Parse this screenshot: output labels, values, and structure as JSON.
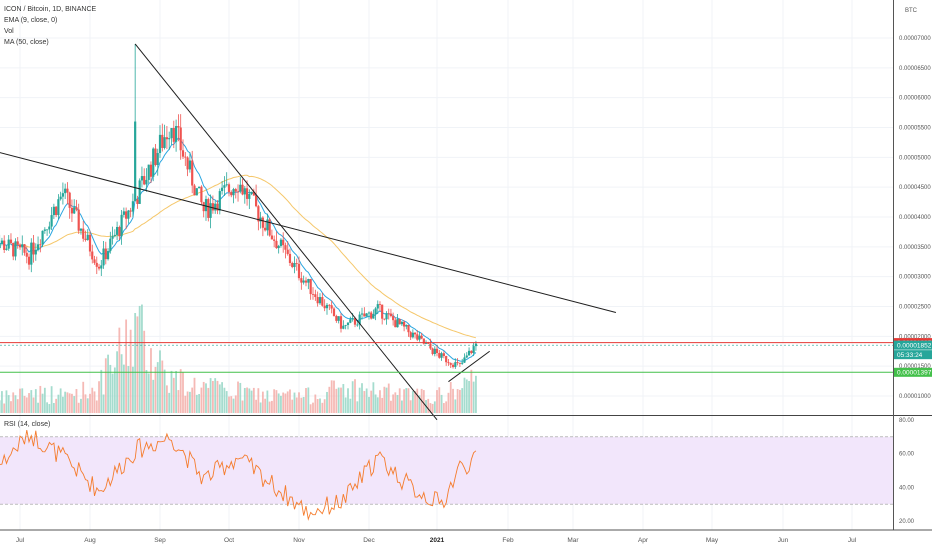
{
  "chart_data": {
    "type": "candlestick",
    "title": "ICON / Bitcoin, 1D, BINANCE",
    "currency": "BTC",
    "indicators": [
      "EMA (9, close, 0)",
      "Vol",
      "MA (50, close)"
    ],
    "rsi_label": "RSI (14, close)",
    "x_tick_labels": [
      "Jul",
      "Aug",
      "Sep",
      "Oct",
      "Nov",
      "Dec",
      "2021",
      "Feb",
      "Mar",
      "Apr",
      "May",
      "Jun",
      "Jul"
    ],
    "y_tick_labels": [
      "0.00001000",
      "0.00001500",
      "0.00002000",
      "0.00002500",
      "0.00003000",
      "0.00003500",
      "0.00004000",
      "0.00004500",
      "0.00005000",
      "0.00005500",
      "0.00006000",
      "0.00006500",
      "0.00007000"
    ],
    "ylim": [
      7.5e-06,
      8e-05
    ],
    "rsi_tick_labels": [
      "20.00",
      "40.00",
      "60.00",
      "80.00"
    ],
    "rsi_ylim": [
      15,
      80
    ],
    "rsi_band": [
      30,
      70
    ],
    "price_tags": {
      "resistance": "0.00001895",
      "last": "0.00001852",
      "countdown": "05:33:24",
      "support": "0.00001397"
    },
    "levels": {
      "resistance": 1.895e-05,
      "last": 1.852e-05,
      "support": 1.397e-05
    },
    "trendlines": [
      {
        "name": "long-downtrend",
        "from": [
          "2020-06-17",
          5.13e-05
        ],
        "to": [
          "2021-03-20",
          2.4e-05
        ]
      },
      {
        "name": "steep-downtrend",
        "from": [
          "2020-08-21",
          6.9e-05
        ],
        "to": [
          "2021-01-01",
          6e-06
        ]
      },
      {
        "name": "rising-support",
        "from": [
          "2021-01-06",
          1.24e-05
        ],
        "to": [
          "2021-01-24",
          1.75e-05
        ]
      }
    ],
    "anchors": {
      "dates": [
        "2020-06-20",
        "2020-07-05",
        "2020-07-20",
        "2020-08-05",
        "2020-08-21",
        "2020-09-06",
        "2020-09-20",
        "2020-10-05",
        "2020-10-20",
        "2020-11-05",
        "2020-11-20",
        "2020-12-05",
        "2020-12-20",
        "2021-01-03",
        "2021-01-11",
        "2021-01-18"
      ],
      "close": [
        3.6e-05,
        3.35e-05,
        4.4e-05,
        3.2e-05,
        4.3e-05,
        5.6e-05,
        4.1e-05,
        4.6e-05,
        3.7e-05,
        2.85e-05,
        2.15e-05,
        2.45e-05,
        2.05e-05,
        1.65e-05,
        1.5e-05,
        1.87e-05
      ],
      "rsi": [
        50,
        72,
        58,
        38,
        62,
        70,
        45,
        58,
        42,
        25,
        32,
        58,
        40,
        30,
        52,
        56
      ],
      "volume_relative": [
        0.15,
        0.25,
        0.2,
        0.3,
        1.0,
        0.4,
        0.3,
        0.25,
        0.2,
        0.2,
        0.3,
        0.25,
        0.2,
        0.2,
        0.3,
        0.35
      ]
    }
  }
}
